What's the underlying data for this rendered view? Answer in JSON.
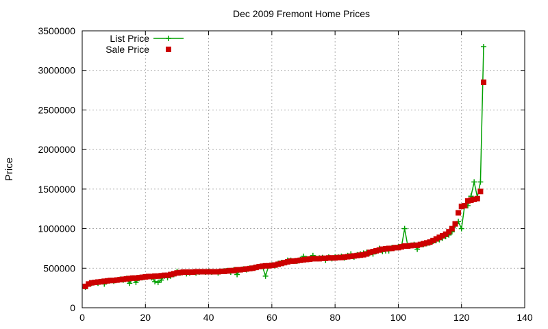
{
  "chart_data": {
    "type": "line",
    "title": "Dec 2009 Fremont Home Prices",
    "xlabel": "",
    "ylabel": "Price",
    "xlim": [
      0,
      140
    ],
    "ylim": [
      0,
      3500000
    ],
    "x_ticks": [
      0,
      20,
      40,
      60,
      80,
      100,
      120,
      140
    ],
    "y_ticks": [
      0,
      500000,
      1000000,
      1500000,
      2000000,
      2500000,
      3000000,
      3500000
    ],
    "grid": true,
    "legend_position": "top-left",
    "series": [
      {
        "name": "List Price",
        "style": "line-plus",
        "color": "#00a000",
        "x": [
          1,
          2,
          3,
          4,
          5,
          6,
          7,
          8,
          9,
          10,
          11,
          12,
          13,
          14,
          15,
          16,
          17,
          18,
          19,
          20,
          21,
          22,
          23,
          24,
          25,
          26,
          27,
          28,
          29,
          30,
          31,
          32,
          33,
          34,
          35,
          36,
          37,
          38,
          39,
          40,
          41,
          42,
          43,
          44,
          45,
          46,
          47,
          48,
          49,
          50,
          51,
          52,
          53,
          54,
          55,
          56,
          57,
          58,
          59,
          60,
          61,
          62,
          63,
          64,
          65,
          66,
          67,
          68,
          69,
          70,
          71,
          72,
          73,
          74,
          75,
          76,
          77,
          78,
          79,
          80,
          81,
          82,
          83,
          84,
          85,
          86,
          87,
          88,
          89,
          90,
          91,
          92,
          93,
          94,
          95,
          96,
          97,
          98,
          99,
          100,
          101,
          102,
          103,
          104,
          105,
          106,
          107,
          108,
          109,
          110,
          111,
          112,
          113,
          114,
          115,
          116,
          117,
          118,
          119,
          120,
          121,
          122,
          123,
          124,
          125,
          126,
          127
        ],
        "values": [
          259000,
          300000,
          310000,
          320000,
          310000,
          330000,
          300000,
          340000,
          345000,
          335000,
          350000,
          360000,
          350000,
          370000,
          310000,
          375000,
          320000,
          370000,
          380000,
          390000,
          395000,
          380000,
          330000,
          320000,
          350000,
          400000,
          380000,
          400000,
          420000,
          460000,
          440000,
          450000,
          430000,
          440000,
          450000,
          440000,
          450000,
          455000,
          450000,
          460000,
          450000,
          455000,
          440000,
          460000,
          465000,
          470000,
          450000,
          480000,
          420000,
          480000,
          490000,
          480000,
          500000,
          500000,
          510000,
          520000,
          525000,
          400000,
          530000,
          540000,
          530000,
          560000,
          570000,
          570000,
          600000,
          600000,
          590000,
          590000,
          610000,
          650000,
          620000,
          620000,
          660000,
          625000,
          630000,
          635000,
          600000,
          640000,
          620000,
          640000,
          640000,
          650000,
          630000,
          660000,
          680000,
          640000,
          670000,
          680000,
          690000,
          700000,
          690000,
          680000,
          710000,
          750000,
          710000,
          720000,
          720000,
          760000,
          760000,
          770000,
          770000,
          1000000,
          780000,
          790000,
          800000,
          740000,
          800000,
          800000,
          810000,
          820000,
          840000,
          850000,
          860000,
          880000,
          900000,
          920000,
          960000,
          1040000,
          1090000,
          1000000,
          1290000,
          1290000,
          1410000,
          1590000,
          1400000,
          1590000,
          3300000
        ]
      },
      {
        "name": "Sale Price",
        "style": "points-square",
        "color": "#cc0000",
        "x": [
          1,
          2,
          3,
          4,
          5,
          6,
          7,
          8,
          9,
          10,
          11,
          12,
          13,
          14,
          15,
          16,
          17,
          18,
          19,
          20,
          21,
          22,
          23,
          24,
          25,
          26,
          27,
          28,
          29,
          30,
          31,
          32,
          33,
          34,
          35,
          36,
          37,
          38,
          39,
          40,
          41,
          42,
          43,
          44,
          45,
          46,
          47,
          48,
          49,
          50,
          51,
          52,
          53,
          54,
          55,
          56,
          57,
          58,
          59,
          60,
          61,
          62,
          63,
          64,
          65,
          66,
          67,
          68,
          69,
          70,
          71,
          72,
          73,
          74,
          75,
          76,
          77,
          78,
          79,
          80,
          81,
          82,
          83,
          84,
          85,
          86,
          87,
          88,
          89,
          90,
          91,
          92,
          93,
          94,
          95,
          96,
          97,
          98,
          99,
          100,
          101,
          102,
          103,
          104,
          105,
          106,
          107,
          108,
          109,
          110,
          111,
          112,
          113,
          114,
          115,
          116,
          117,
          118,
          119,
          120,
          121,
          122,
          123,
          124,
          125,
          126,
          127
        ],
        "values": [
          270000,
          300000,
          315000,
          320000,
          325000,
          330000,
          335000,
          340000,
          345000,
          345000,
          350000,
          355000,
          360000,
          365000,
          370000,
          375000,
          375000,
          380000,
          385000,
          390000,
          395000,
          395000,
          400000,
          400000,
          405000,
          410000,
          410000,
          420000,
          430000,
          440000,
          445000,
          450000,
          450000,
          450000,
          450000,
          455000,
          455000,
          455000,
          455000,
          455000,
          455000,
          455000,
          455000,
          460000,
          460000,
          465000,
          470000,
          470000,
          480000,
          480000,
          485000,
          490000,
          495000,
          500000,
          510000,
          520000,
          525000,
          530000,
          530000,
          535000,
          540000,
          550000,
          560000,
          570000,
          580000,
          590000,
          590000,
          595000,
          600000,
          605000,
          610000,
          615000,
          620000,
          620000,
          620000,
          625000,
          625000,
          630000,
          630000,
          630000,
          635000,
          635000,
          640000,
          645000,
          650000,
          655000,
          660000,
          665000,
          670000,
          680000,
          700000,
          710000,
          720000,
          730000,
          740000,
          745000,
          750000,
          750000,
          760000,
          760000,
          770000,
          780000,
          780000,
          785000,
          790000,
          790000,
          800000,
          810000,
          820000,
          830000,
          850000,
          870000,
          890000,
          910000,
          930000,
          960000,
          1000000,
          1060000,
          1200000,
          1280000,
          1290000,
          1350000,
          1360000,
          1370000,
          1380000,
          1470000,
          2850000
        ]
      }
    ]
  }
}
